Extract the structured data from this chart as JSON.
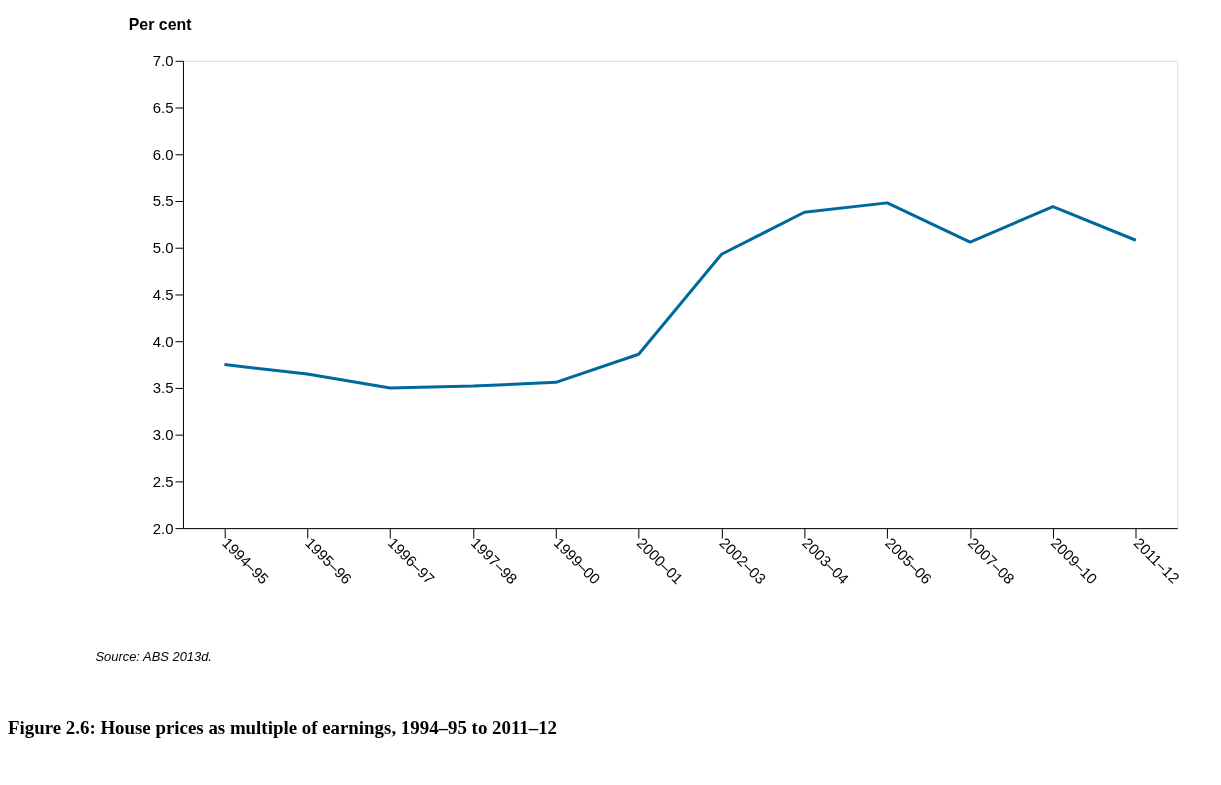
{
  "chart_data": {
    "type": "line",
    "title": "Figure 2.6: House prices as multiple of earnings, 1994–95 to 2011–12",
    "ylabel": "Per cent",
    "categories": [
      "1994–95",
      "1995–96",
      "1996–97",
      "1997–98",
      "1999–00",
      "2000–01",
      "2002–03",
      "2003–04",
      "2005–06",
      "2007–08",
      "2009–10",
      "2011–12"
    ],
    "series": [
      {
        "color": "#00689d",
        "values": [
          3.75,
          3.65,
          3.5,
          3.52,
          3.56,
          3.86,
          4.93,
          5.38,
          5.48,
          5.06,
          5.44,
          5.08
        ]
      }
    ],
    "ylim": [
      2.0,
      7.0
    ],
    "yticks": [
      {
        "value": 2.0,
        "label": "2.0"
      },
      {
        "value": 2.5,
        "label": "2.5"
      },
      {
        "value": 3.0,
        "label": "3.0"
      },
      {
        "value": 3.5,
        "label": "3.5"
      },
      {
        "value": 4.0,
        "label": "4.0"
      },
      {
        "value": 4.5,
        "label": "4.5"
      },
      {
        "value": 5.0,
        "label": "5.0"
      },
      {
        "value": 5.5,
        "label": "5.5"
      },
      {
        "value": 6.0,
        "label": "6.0"
      },
      {
        "value": 6.5,
        "label": "6.5"
      },
      {
        "value": 7.0,
        "label": "7.0"
      }
    ],
    "grid": false,
    "line_style": "solid",
    "annotations": [
      "Source: ABS 2013d."
    ]
  }
}
